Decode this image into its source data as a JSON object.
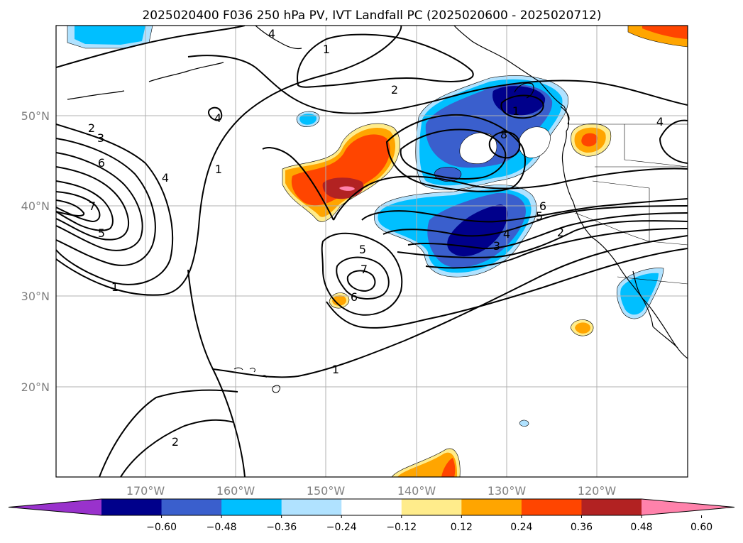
{
  "title": "2025020400 F036 250 hPa PV, IVT Landfall PC (2025020600 - 2025020712)",
  "lat_labels": [
    "50°N",
    "40°N",
    "30°N",
    "20°N"
  ],
  "lon_labels": [
    "170°W",
    "160°W",
    "150°W",
    "140°W",
    "130°W",
    "120°W"
  ],
  "colorbar": {
    "colors": [
      "#9932cc",
      "#00008b",
      "#3a5fcd",
      "#00bfff",
      "#b0e2ff",
      "#ffffff",
      "#ffec8b",
      "#ffa500",
      "#ff4500",
      "#b22222",
      "#ff82ab"
    ],
    "tick_labels": [
      "−0.60",
      "−0.48",
      "−0.36",
      "−0.24",
      "−0.12",
      "0.12",
      "0.24",
      "0.36",
      "0.48",
      "0.60"
    ]
  },
  "contour_labels": [
    "4",
    "1",
    "2",
    "4",
    "1",
    "2",
    "3",
    "6",
    "4",
    "7",
    "5",
    "1",
    "5",
    "7",
    "6",
    "1",
    "2",
    "8",
    "1",
    "6",
    "5",
    "4",
    "3",
    "2",
    "4"
  ]
}
